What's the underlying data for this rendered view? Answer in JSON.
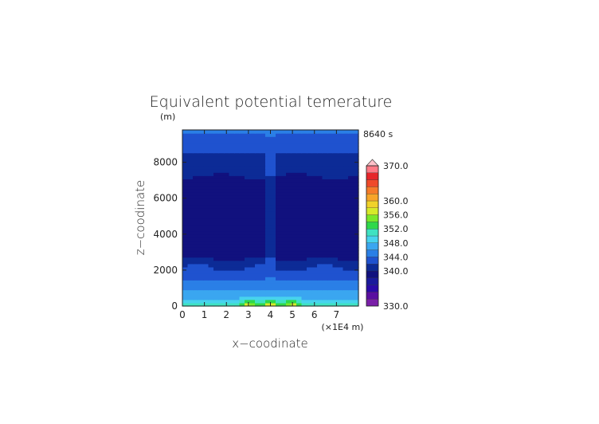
{
  "chart_data": {
    "type": "heatmap",
    "title": "Equivalent potential temerature",
    "ylabel": "z−coodinate",
    "y_unit": "(m)",
    "xlabel": "x−coodinate",
    "x_unit": "(×1E4 m)",
    "time_label": "8640 s",
    "xlim": [
      0,
      8
    ],
    "ylim": [
      0,
      9800
    ],
    "x_ticks": [
      "0",
      "1",
      "2",
      "3",
      "4",
      "5",
      "6",
      "7"
    ],
    "y_ticks": [
      "0",
      "2000",
      "4000",
      "6000",
      "8000"
    ],
    "y_tick_values": [
      0,
      2000,
      4000,
      6000,
      8000
    ],
    "color_levels": [
      330,
      332,
      334,
      336,
      338,
      340,
      342,
      344,
      346,
      348,
      350,
      352,
      354,
      356,
      358,
      360,
      362,
      364,
      366,
      368,
      370
    ],
    "colorbar_labels": [
      "370.0",
      "360.0",
      "356.0",
      "352.0",
      "348.0",
      "344.0",
      "340.0",
      "330.0"
    ],
    "colorbar_label_values": [
      370,
      360,
      356,
      352,
      348,
      344,
      340,
      330
    ],
    "colors": [
      "#7a1fa8",
      "#5a0ea0",
      "#2a0aa8",
      "#1a1a9c",
      "#11117e",
      "#0c2b96",
      "#1f52cf",
      "#2a7fe6",
      "#3aa6f0",
      "#47d3ee",
      "#3fe2c2",
      "#2fd84a",
      "#7ae82a",
      "#d6ea2a",
      "#f0d22a",
      "#f7a52a",
      "#f57c2a",
      "#ef4a2a",
      "#e6262a",
      "#ff7a86",
      "#ffc0c8"
    ],
    "profile": [
      {
        "z": 0,
        "theta": 352.5
      },
      {
        "z": 150,
        "theta": 350.5
      },
      {
        "z": 350,
        "theta": 348.5
      },
      {
        "z": 650,
        "theta": 346.5
      },
      {
        "z": 1000,
        "theta": 345.5
      },
      {
        "z": 1400,
        "theta": 344.5
      },
      {
        "z": 1700,
        "theta": 343.2
      },
      {
        "z": 2000,
        "theta": 342.3
      },
      {
        "z": 2300,
        "theta": 341.5
      },
      {
        "z": 2500,
        "theta": 340.5
      },
      {
        "z": 2800,
        "theta": 339.2
      },
      {
        "z": 7000,
        "theta": 339.2
      },
      {
        "z": 7400,
        "theta": 340.5
      },
      {
        "z": 8200,
        "theta": 341.5
      },
      {
        "z": 9000,
        "theta": 342.5
      },
      {
        "z": 9500,
        "theta": 343.5
      },
      {
        "z": 9800,
        "theta": 344.5
      }
    ],
    "plume": {
      "x_center": 4.0,
      "half_width": 0.12,
      "theta_core": 345.0
    },
    "hot_spots": [
      {
        "x": 3.0,
        "theta": 357
      },
      {
        "x": 4.0,
        "theta": 358
      },
      {
        "x": 5.0,
        "theta": 357
      }
    ]
  }
}
